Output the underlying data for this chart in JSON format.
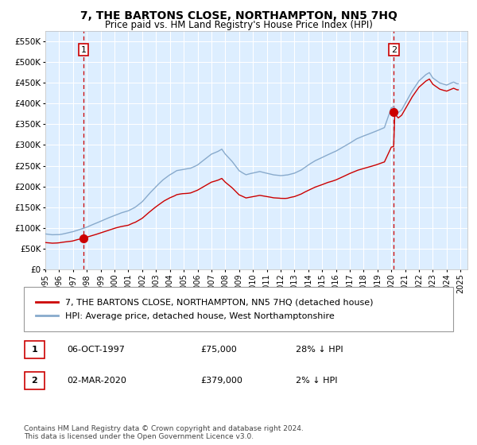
{
  "title": "7, THE BARTONS CLOSE, NORTHAMPTON, NN5 7HQ",
  "subtitle": "Price paid vs. HM Land Registry's House Price Index (HPI)",
  "background_color": "#ffffff",
  "plot_bg_color": "#ddeeff",
  "grid_color": "#ffffff",
  "ylim": [
    0,
    575000
  ],
  "xlim_start": 1995.0,
  "xlim_end": 2025.5,
  "yticks": [
    0,
    50000,
    100000,
    150000,
    200000,
    250000,
    300000,
    350000,
    400000,
    450000,
    500000,
    550000
  ],
  "ytick_labels": [
    "£0",
    "£50K",
    "£100K",
    "£150K",
    "£200K",
    "£250K",
    "£300K",
    "£350K",
    "£400K",
    "£450K",
    "£500K",
    "£550K"
  ],
  "xtick_years": [
    1995,
    1996,
    1997,
    1998,
    1999,
    2000,
    2001,
    2002,
    2003,
    2004,
    2005,
    2006,
    2007,
    2008,
    2009,
    2010,
    2011,
    2012,
    2013,
    2014,
    2015,
    2016,
    2017,
    2018,
    2019,
    2020,
    2021,
    2022,
    2023,
    2024,
    2025
  ],
  "sale1_x": 1997.76,
  "sale1_y": 75000,
  "sale1_label": "06-OCT-1997",
  "sale1_price": "£75,000",
  "sale1_hpi": "28% ↓ HPI",
  "sale2_x": 2020.17,
  "sale2_y": 379000,
  "sale2_label": "02-MAR-2020",
  "sale2_price": "£379,000",
  "sale2_hpi": "2% ↓ HPI",
  "red_line_color": "#cc0000",
  "blue_line_color": "#88aacc",
  "annotation_box_color": "#cc0000",
  "dashed_line_color": "#cc0000",
  "legend_line1": "7, THE BARTONS CLOSE, NORTHAMPTON, NN5 7HQ (detached house)",
  "legend_line2": "HPI: Average price, detached house, West Northamptonshire",
  "copyright_text": "Contains HM Land Registry data © Crown copyright and database right 2024.\nThis data is licensed under the Open Government Licence v3.0."
}
